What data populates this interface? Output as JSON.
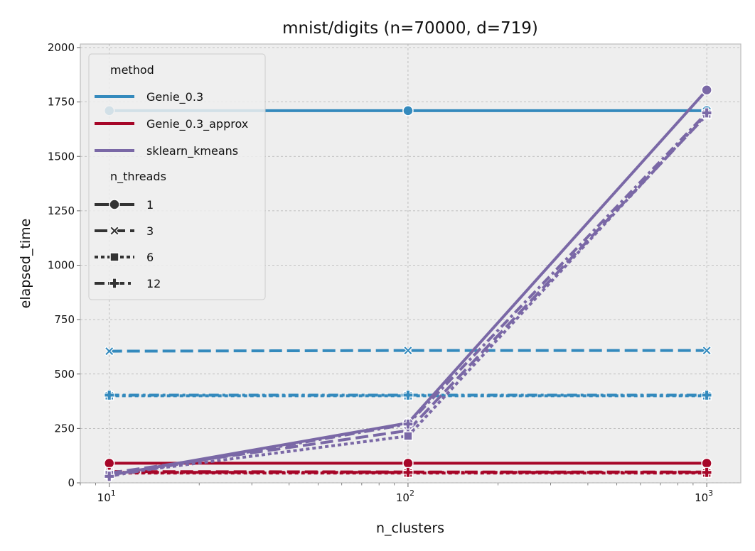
{
  "chart_data": {
    "type": "line",
    "title": "mnist/digits (n=70000, d=719)",
    "xlabel": "n_clusters",
    "ylabel": "elapsed_time",
    "x_scale": "log",
    "x": [
      10,
      100,
      1000
    ],
    "x_ticks": [
      {
        "value": 10,
        "base": "10",
        "exp": "1"
      },
      {
        "value": 100,
        "base": "10",
        "exp": "2"
      },
      {
        "value": 1000,
        "base": "10",
        "exp": "3"
      }
    ],
    "xlim": [
      8,
      1300
    ],
    "ylim": [
      0,
      2000
    ],
    "y_ticks": [
      "0",
      "250",
      "500",
      "750",
      "1000",
      "1250",
      "1500",
      "1750",
      "2000"
    ],
    "grid": true,
    "legend": {
      "placement": "top-left",
      "hue_title": "method",
      "style_title": "n_threads",
      "methods": [
        {
          "name": "Genie_0.3",
          "color": "#348ABD"
        },
        {
          "name": "Genie_0.3_approx",
          "color": "#A60628"
        },
        {
          "name": "sklearn_kmeans",
          "color": "#7A68A6"
        }
      ],
      "threads": [
        {
          "name": "1",
          "marker": "circle",
          "dash": "solid"
        },
        {
          "name": "3",
          "marker": "x",
          "dash": "dashed"
        },
        {
          "name": "6",
          "marker": "square",
          "dash": "dotted"
        },
        {
          "name": "12",
          "marker": "plus",
          "dash": "dashdot"
        }
      ]
    },
    "series": [
      {
        "method": "Genie_0.3",
        "n_threads": "1",
        "values": [
          1710,
          1710,
          1710
        ]
      },
      {
        "method": "Genie_0.3",
        "n_threads": "3",
        "values": [
          605,
          608,
          608
        ]
      },
      {
        "method": "Genie_0.3",
        "n_threads": "6",
        "values": [
          400,
          400,
          400
        ]
      },
      {
        "method": "Genie_0.3",
        "n_threads": "12",
        "values": [
          403,
          403,
          403
        ]
      },
      {
        "method": "Genie_0.3_approx",
        "n_threads": "1",
        "values": [
          90,
          90,
          90
        ]
      },
      {
        "method": "Genie_0.3_approx",
        "n_threads": "3",
        "values": [
          52,
          50,
          50
        ]
      },
      {
        "method": "Genie_0.3_approx",
        "n_threads": "6",
        "values": [
          45,
          45,
          45
        ]
      },
      {
        "method": "Genie_0.3_approx",
        "n_threads": "12",
        "values": [
          48,
          48,
          48
        ]
      },
      {
        "method": "sklearn_kmeans",
        "n_threads": "1",
        "values": [
          35,
          275,
          1805
        ]
      },
      {
        "method": "sklearn_kmeans",
        "n_threads": "3",
        "values": [
          45,
          240,
          1690
        ]
      },
      {
        "method": "sklearn_kmeans",
        "n_threads": "6",
        "values": [
          38,
          215,
          1695
        ]
      },
      {
        "method": "sklearn_kmeans",
        "n_threads": "12",
        "values": [
          30,
          270,
          1700
        ]
      }
    ]
  }
}
